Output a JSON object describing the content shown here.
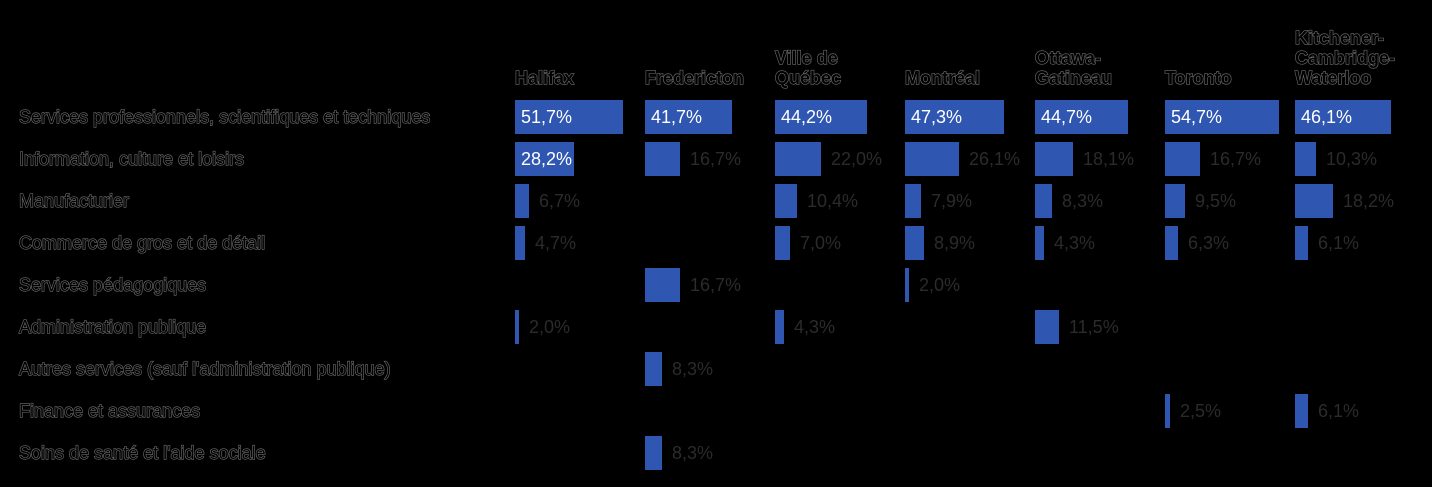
{
  "chart_data": {
    "type": "bar",
    "orientation": "horizontal-small-multiples",
    "bar_color": "#2f56b0",
    "cities": [
      "Halifax",
      "Fredericton",
      "Ville de Québec",
      "Montréal",
      "Ottawa-Gatineau",
      "Toronto",
      "Kitchener-Cambridge-Waterloo"
    ],
    "city_label_lines": [
      [
        "Halifax"
      ],
      [
        "Fredericton"
      ],
      [
        "Ville de",
        "Québec"
      ],
      [
        "Montréal"
      ],
      [
        "Ottawa-",
        "Gatineau"
      ],
      [
        "Toronto"
      ],
      [
        "Kitchener-",
        "Cambridge-",
        "Waterloo"
      ]
    ],
    "categories": [
      "Services professionnels, scientifiques et techniques",
      "Information, culture et loisirs",
      "Manufacturier",
      "Commerce de gros et de détail",
      "Services pédagogiques",
      "Administration publique",
      "Autres services (sauf l'administration publique)",
      "Finance et assurances",
      "Soins de santé et l'aide sociale"
    ],
    "series": [
      {
        "name": "Halifax",
        "values": [
          51.7,
          28.2,
          6.7,
          4.7,
          null,
          2.0,
          null,
          null,
          null
        ]
      },
      {
        "name": "Fredericton",
        "values": [
          41.7,
          16.7,
          null,
          null,
          16.7,
          null,
          8.3,
          null,
          8.3
        ]
      },
      {
        "name": "Ville de Québec",
        "values": [
          44.2,
          22.0,
          10.4,
          7.0,
          null,
          4.3,
          null,
          null,
          null
        ]
      },
      {
        "name": "Montréal",
        "values": [
          47.3,
          26.1,
          7.9,
          8.9,
          2.0,
          null,
          null,
          null,
          null
        ]
      },
      {
        "name": "Ottawa-Gatineau",
        "values": [
          44.7,
          18.1,
          8.3,
          4.3,
          null,
          11.5,
          null,
          null,
          null
        ]
      },
      {
        "name": "Toronto",
        "values": [
          54.7,
          16.7,
          9.5,
          6.3,
          null,
          null,
          null,
          2.5,
          null
        ]
      },
      {
        "name": "Kitchener-Cambridge-Waterloo",
        "values": [
          46.1,
          10.3,
          18.2,
          6.1,
          null,
          null,
          null,
          6.1,
          null
        ]
      }
    ],
    "value_suffix": "%",
    "decimal_separator": ",",
    "xlim": [
      0,
      54.7
    ],
    "grid": false,
    "legend": "none"
  }
}
